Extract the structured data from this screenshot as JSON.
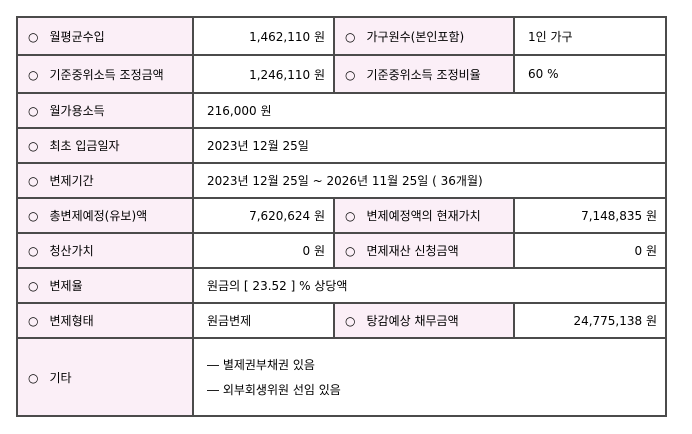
{
  "colors": {
    "label_bg": "#fbeff7",
    "value_bg": "#ffffff",
    "border": "#4b4b4b",
    "text": "#000000"
  },
  "bullet": "○",
  "rows": [
    {
      "cells": [
        {
          "label": "월평균수입",
          "value": "1,462,110 원"
        },
        {
          "label": "가구원수(본인포함)",
          "value": "1인 가구"
        }
      ]
    },
    {
      "cells": [
        {
          "label": "기준중위소득 조정금액",
          "value": "1,246,110 원"
        },
        {
          "label": "기준중위소득 조정비율",
          "value": "60 %"
        }
      ]
    },
    {
      "label": "월가용소득",
      "value": "216,000 원"
    },
    {
      "label": "최초 입금일자",
      "value": "2023년 12월 25일"
    },
    {
      "label": "변제기간",
      "value": "2023년 12월 25일 ~ 2026년 11월 25일 ( 36개월)"
    },
    {
      "cells": [
        {
          "label": "총변제예정(유보)액",
          "value": "7,620,624 원"
        },
        {
          "label": "변제예정액의 현재가치",
          "value": "7,148,835 원"
        }
      ]
    },
    {
      "cells": [
        {
          "label": "청산가치",
          "value": "0 원"
        },
        {
          "label": "면제재산 신청금액",
          "value": "0 원"
        }
      ]
    },
    {
      "label": "변제율",
      "value": "원금의 [ 23.52 ] % 상당액"
    },
    {
      "cells": [
        {
          "label": "변제형태",
          "value": "원금변제"
        },
        {
          "label": "탕감예상 채무금액",
          "value": "24,775,138 원"
        }
      ]
    },
    {
      "label": "기타",
      "lines": [
        "― 별제권부채권 있음",
        "― 외부회생위원 선임 있음"
      ]
    }
  ]
}
